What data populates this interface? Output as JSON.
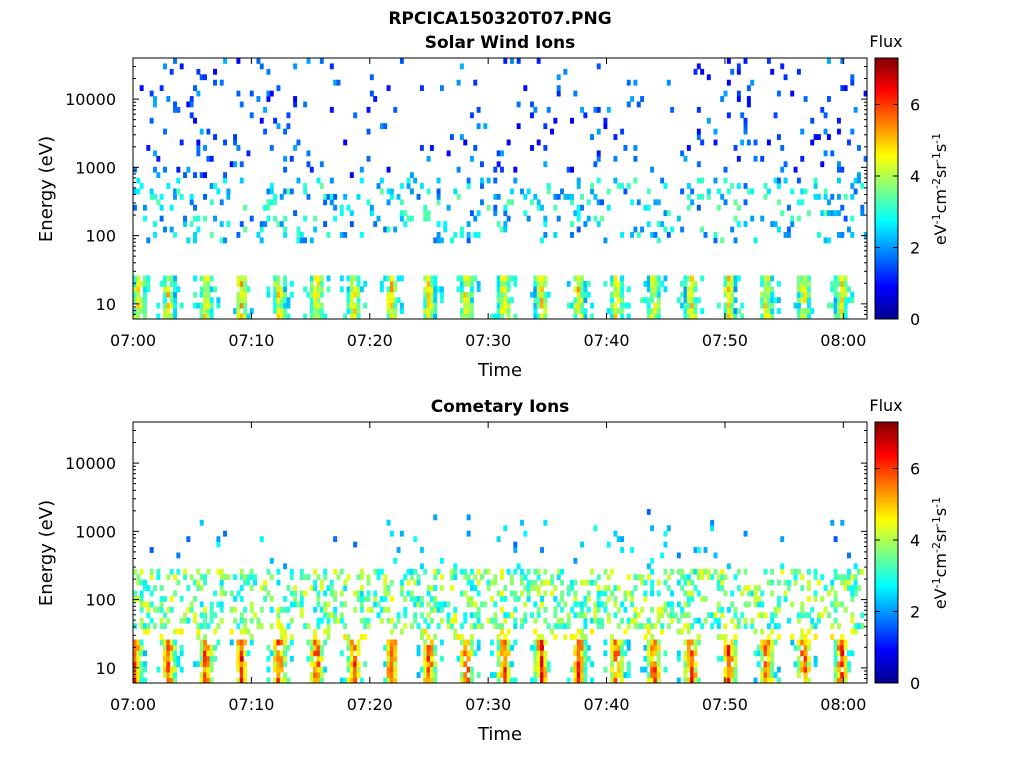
{
  "figure": {
    "title": "RPCICA150320T07.PNG"
  },
  "chart_data": [
    {
      "type": "heatmap",
      "title": "Solar Wind Ions",
      "xlabel": "Time",
      "ylabel": "Energy (eV)",
      "x_ticks": [
        "07:00",
        "07:10",
        "07:20",
        "07:30",
        "07:40",
        "07:50",
        "08:00"
      ],
      "xlim": [
        "07:00",
        "08:02"
      ],
      "y_scale": "log",
      "y_ticks": [
        "10",
        "100",
        "1000",
        "10000"
      ],
      "ylim": [
        6,
        40000
      ],
      "colorbar": {
        "label": "Flux",
        "unit": "eV-1cm-2sr-1s-1",
        "range": [
          0,
          7.3
        ],
        "ticks": [
          "0",
          "2",
          "4",
          "6"
        ],
        "colormap": "jet"
      },
      "pulse_times": [
        "07:00:30",
        "07:03:00",
        "07:06:10",
        "07:09:10",
        "07:12:20",
        "07:15:30",
        "07:18:40",
        "07:21:50",
        "07:25:00",
        "07:28:10",
        "07:31:20",
        "07:34:30",
        "07:37:40",
        "07:40:50",
        "07:44:00",
        "07:47:10",
        "07:50:20",
        "07:53:30",
        "07:56:40",
        "07:59:50"
      ],
      "low_band": {
        "energy_range": [
          6,
          28
        ],
        "peak_flux": 5.5
      },
      "mid_band": {
        "energy_range": [
          80,
          700
        ],
        "typical_flux": 2.5
      },
      "high_energy": {
        "energy_range": [
          700,
          40000
        ],
        "typical_flux": 1.5
      }
    },
    {
      "type": "heatmap",
      "title": "Cometary Ions",
      "xlabel": "Time",
      "ylabel": "Energy (eV)",
      "x_ticks": [
        "07:00",
        "07:10",
        "07:20",
        "07:30",
        "07:40",
        "07:50",
        "08:00"
      ],
      "xlim": [
        "07:00",
        "08:02"
      ],
      "y_scale": "log",
      "y_ticks": [
        "10",
        "100",
        "1000",
        "10000"
      ],
      "ylim": [
        6,
        40000
      ],
      "colorbar": {
        "label": "Flux",
        "unit": "eV-1cm-2sr-1s-1",
        "range": [
          0,
          7.3
        ],
        "ticks": [
          "0",
          "2",
          "4",
          "6"
        ],
        "colormap": "jet"
      },
      "pulse_times": [
        "07:00:10",
        "07:03:00",
        "07:06:10",
        "07:09:10",
        "07:12:20",
        "07:15:30",
        "07:18:40",
        "07:21:50",
        "07:25:00",
        "07:28:10",
        "07:31:20",
        "07:34:30",
        "07:37:40",
        "07:40:50",
        "07:44:00",
        "07:47:10",
        "07:50:20",
        "07:53:30",
        "07:56:40",
        "07:59:50"
      ],
      "low_band": {
        "energy_range": [
          6,
          28
        ],
        "peak_flux": 6.8
      },
      "mid_band": {
        "energy_range": [
          40,
          300
        ],
        "typical_flux": 3.5
      },
      "high_energy": {
        "energy_range": [
          300,
          2500
        ],
        "typical_flux": 2.2
      }
    }
  ]
}
